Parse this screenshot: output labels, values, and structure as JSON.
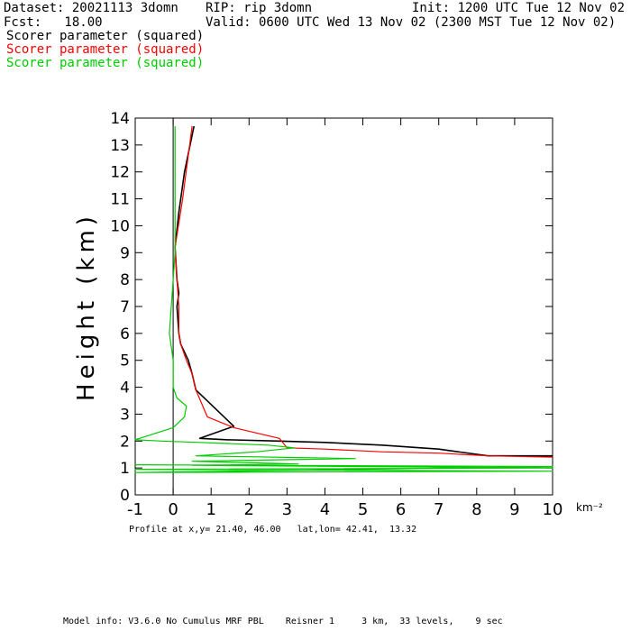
{
  "header": {
    "dataset": "Dataset: 20021113 3domn",
    "rip": "RIP: rip 3domn",
    "init": "Init: 1200 UTC Tue 12 Nov 02",
    "fcst": "Fcst:   18.00",
    "valid": "Valid: 0600 UTC Wed 13 Nov 02 (2300 MST Tue 12 Nov 02)",
    "legend": [
      {
        "label": "Scorer parameter (squared)",
        "color": "#000000"
      },
      {
        "label": "Scorer parameter (squared)",
        "color": "#ff0000"
      },
      {
        "label": "Scorer parameter (squared)",
        "color": "#00cc00"
      }
    ]
  },
  "chart_data": {
    "type": "line",
    "xlabel": "km⁻²",
    "ylabel": "Height (km)",
    "xlim": [
      -1,
      10
    ],
    "ylim": [
      0,
      14
    ],
    "xticks": [
      "-1",
      "0",
      "1",
      "2",
      "3",
      "4",
      "5",
      "6",
      "7",
      "8",
      "9",
      "10"
    ],
    "yticks": [
      "0",
      "1",
      "2",
      "3",
      "4",
      "5",
      "6",
      "7",
      "8",
      "9",
      "10",
      "11",
      "12",
      "13",
      "14"
    ],
    "series": [
      {
        "color": "#000000",
        "x": [
          10,
          8.3,
          7.0,
          5.5,
          4.0,
          2.8,
          1.4,
          0.7,
          1.6,
          0.6,
          0.5,
          0.4,
          0.2,
          0.15,
          0.1,
          0.15,
          0.1,
          0.05,
          0.15,
          0.3,
          0.55
        ],
        "y": [
          1.45,
          1.45,
          1.7,
          1.85,
          1.95,
          2.0,
          2.05,
          2.1,
          2.55,
          3.9,
          4.5,
          5.0,
          5.6,
          6.0,
          7.0,
          7.5,
          8.0,
          9.2,
          10.5,
          12.0,
          13.7
        ]
      },
      {
        "color": "#ff0000",
        "x": [
          10,
          8.3,
          7.0,
          5.5,
          4.0,
          3.0,
          2.8,
          1.6,
          0.9,
          0.6,
          0.5,
          0.35,
          0.2,
          0.15,
          0.15,
          0.1,
          0.05,
          0.25,
          0.5
        ],
        "y": [
          1.4,
          1.45,
          1.55,
          1.6,
          1.7,
          1.75,
          2.1,
          2.5,
          2.9,
          3.9,
          4.5,
          5.0,
          5.6,
          6.0,
          7.0,
          8.0,
          9.2,
          11.0,
          13.7
        ]
      },
      {
        "color": "#00cc00",
        "x": [
          0.05,
          0.05,
          0.0,
          -0.1,
          0.0,
          0.0,
          0.1,
          0.35,
          0.3,
          0.0,
          -1.0,
          -0.3,
          0.7,
          2.5,
          3.2,
          2.2,
          0.6,
          4.8,
          0.5,
          3.3,
          0.5,
          10.0,
          -1.0,
          10.0,
          -1.0,
          10.0,
          -1.0
        ],
        "y": [
          13.7,
          9.0,
          8.0,
          6.0,
          5.0,
          4.0,
          3.6,
          3.3,
          2.9,
          2.5,
          2.05,
          2.0,
          1.95,
          1.85,
          1.75,
          1.6,
          1.45,
          1.35,
          1.25,
          1.15,
          1.1,
          1.0,
          0.95,
          0.88,
          0.83,
          1.05,
          1.12
        ]
      }
    ]
  },
  "profile": "Profile at x,y= 21.40, 46.00   lat,lon= 42.41,  13.32",
  "model_info": "Model info: V3.6.0 No Cumulus MRF PBL    Reisner 1     3 km,  33 levels,    9 sec"
}
